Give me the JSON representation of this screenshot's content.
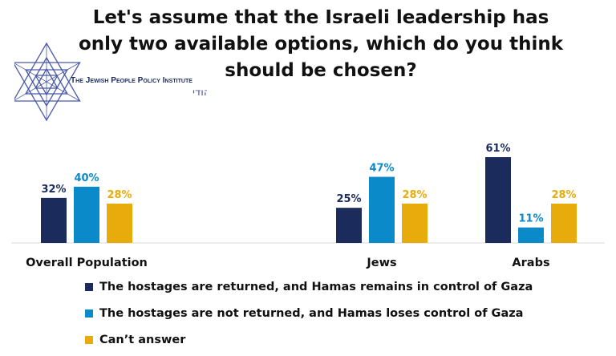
{
  "title_lines": [
    "Let's assume that the Israeli leadership has",
    "only two available options, which do you think",
    "should be chosen?"
  ],
  "logo": {
    "name_en": "The Jewish People Policy Institute",
    "name_he": "המכון למדיניות העם היהודי",
    "color": "#4a5aa8"
  },
  "chart_data": {
    "type": "bar",
    "categories": [
      "Overall Population",
      "Jews",
      "Arabs"
    ],
    "series": [
      {
        "name": "The hostages are returned, and Hamas remains in control of Gaza",
        "values": [
          32,
          25,
          61
        ],
        "color": "#1b2c5c"
      },
      {
        "name": "The hostages are not returned, and Hamas loses control of Gaza",
        "values": [
          40,
          47,
          11
        ],
        "color": "#0b8ac9"
      },
      {
        "name": "Can’t answer",
        "values": [
          28,
          28,
          28
        ],
        "color": "#e8ab0c"
      }
    ],
    "value_suffix": "%",
    "ylim": [
      0,
      61
    ],
    "grid": false,
    "legend_position": "bottom-left"
  }
}
